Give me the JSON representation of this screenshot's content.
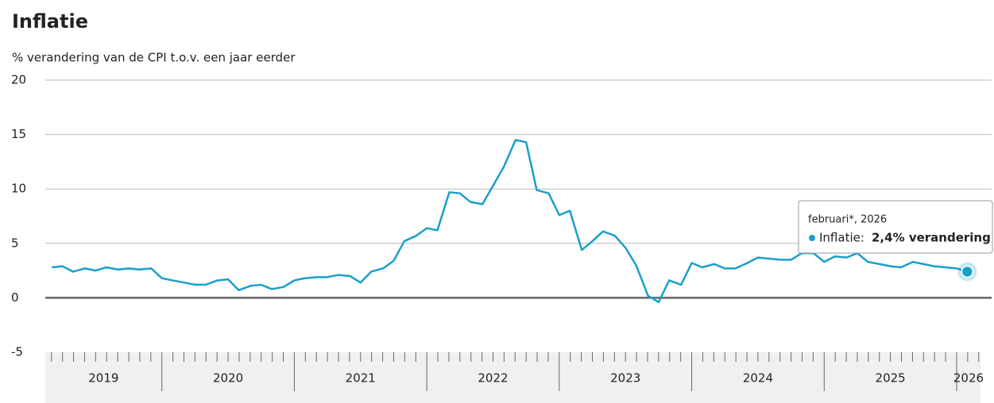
{
  "chart_data": {
    "type": "line",
    "title": "Inflatie",
    "subtitle": "% verandering van de CPI t.o.v. een jaar eerder",
    "x": [
      2019.17,
      2019.25,
      2019.33,
      2019.42,
      2019.5,
      2019.58,
      2019.67,
      2019.75,
      2019.83,
      2019.92,
      2020,
      2020.08,
      2020.17,
      2020.25,
      2020.33,
      2020.42,
      2020.5,
      2020.58,
      2020.67,
      2020.75,
      2020.83,
      2020.92,
      2021,
      2021.08,
      2021.17,
      2021.25,
      2021.33,
      2021.42,
      2021.5,
      2021.58,
      2021.67,
      2021.75,
      2021.83,
      2021.92,
      2022,
      2022.08,
      2022.17,
      2022.25,
      2022.33,
      2022.42,
      2022.5,
      2022.58,
      2022.67,
      2022.75,
      2022.83,
      2022.92,
      2023,
      2023.08,
      2023.17,
      2023.25,
      2023.33,
      2023.42,
      2023.5,
      2023.58,
      2023.67,
      2023.75,
      2023.83,
      2023.92,
      2024,
      2024.08,
      2024.17,
      2024.25,
      2024.33,
      2024.42,
      2024.5,
      2024.58,
      2024.67,
      2024.75,
      2024.83,
      2024.92,
      2025,
      2025.08,
      2025.17,
      2025.25,
      2025.33,
      2025.42,
      2025.5,
      2025.58,
      2025.67,
      2025.75,
      2025.83,
      2025.92,
      2026,
      2026.08
    ],
    "series": [
      {
        "name": "Inflatie",
        "color": "#1a9fca",
        "values": [
          2.8,
          2.9,
          2.4,
          2.7,
          2.5,
          2.8,
          2.6,
          2.7,
          2.6,
          2.7,
          1.8,
          1.6,
          1.4,
          1.2,
          1.2,
          1.6,
          1.7,
          0.7,
          1.1,
          1.2,
          0.8,
          1.0,
          1.6,
          1.8,
          1.9,
          1.9,
          2.1,
          2.0,
          1.4,
          2.4,
          2.7,
          3.4,
          5.2,
          5.7,
          6.4,
          6.2,
          9.7,
          9.6,
          8.8,
          8.6,
          10.3,
          12.0,
          14.5,
          14.3,
          9.9,
          9.6,
          7.6,
          8.0,
          4.4,
          5.2,
          6.1,
          5.7,
          4.6,
          3.0,
          0.2,
          -0.4,
          1.6,
          1.2,
          3.2,
          2.8,
          3.1,
          2.7,
          2.7,
          3.2,
          3.7,
          3.6,
          3.5,
          3.5,
          4.1,
          4.1,
          3.3,
          3.8,
          3.7,
          4.1,
          3.3,
          3.1,
          2.9,
          2.8,
          3.3,
          3.1,
          2.9,
          2.8,
          2.7,
          2.4
        ]
      }
    ],
    "xlim": [
      2019.12,
      2026.18
    ],
    "xticks": [
      2019,
      2020,
      2021,
      2022,
      2023,
      2024,
      2025,
      2026
    ],
    "ylim": [
      -5,
      20
    ],
    "yticks": [
      -5,
      0,
      5,
      10,
      15,
      20
    ],
    "grid": true,
    "tooltip": {
      "date": "februari*, 2026",
      "series_label": "Inflatie:",
      "value_label": "2,4% verandering"
    }
  }
}
